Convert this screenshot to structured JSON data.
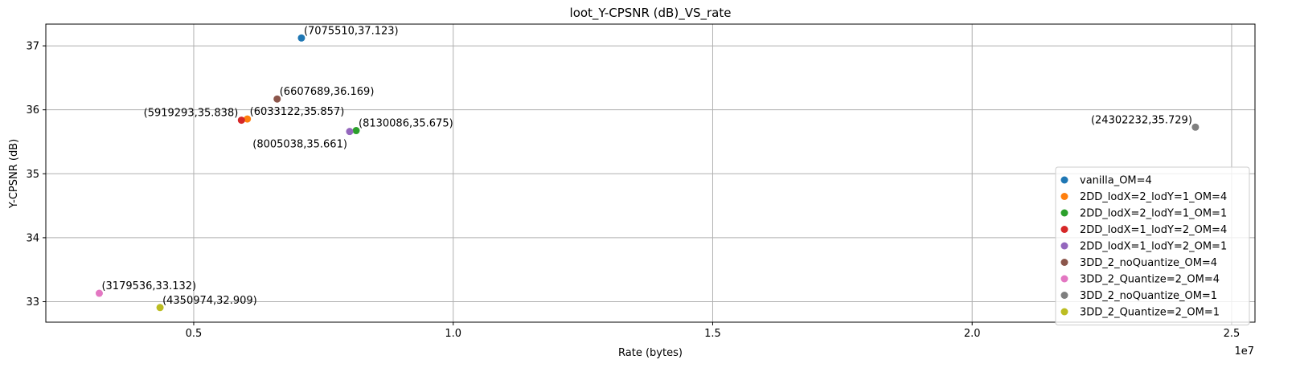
{
  "chart_data": {
    "type": "scatter",
    "title": "loot_Y-CPSNR (dB)_VS_rate",
    "xlabel": "Rate (bytes)",
    "ylabel": "Y-CPSNR (dB)",
    "x_offset_label": "1e7",
    "xlim": [
      2150000,
      25450000
    ],
    "ylim": [
      32.68,
      37.34
    ],
    "x_ticks": [
      {
        "value": 5000000,
        "label": "0.5"
      },
      {
        "value": 10000000,
        "label": "1.0"
      },
      {
        "value": 15000000,
        "label": "1.5"
      },
      {
        "value": 20000000,
        "label": "2.0"
      },
      {
        "value": 25000000,
        "label": "2.5"
      }
    ],
    "y_ticks": [
      {
        "value": 33,
        "label": "33"
      },
      {
        "value": 34,
        "label": "34"
      },
      {
        "value": 35,
        "label": "35"
      },
      {
        "value": 36,
        "label": "36"
      },
      {
        "value": 37,
        "label": "37"
      }
    ],
    "grid": true,
    "legend_position": "lower-right",
    "series": [
      {
        "name": "vanilla_OM=4",
        "color": "#1f77b4",
        "x": 7075510,
        "y": 37.123,
        "label": "(7075510,37.123)",
        "label_align": "right"
      },
      {
        "name": "2DD_lodX=2_lodY=1_OM=4",
        "color": "#ff7f0e",
        "x": 6033122,
        "y": 35.857,
        "label": "(6033122,35.857)",
        "label_align": "right"
      },
      {
        "name": "2DD_lodX=2_lodY=1_OM=1",
        "color": "#2ca02c",
        "x": 8130086,
        "y": 35.675,
        "label": "(8130086,35.675)",
        "label_align": "right"
      },
      {
        "name": "2DD_lodX=1_lodY=2_OM=4",
        "color": "#d62728",
        "x": 5919293,
        "y": 35.838,
        "label": "(5919293,35.838)",
        "label_align": "left"
      },
      {
        "name": "2DD_lodX=1_lodY=2_OM=1",
        "color": "#9467bd",
        "x": 8005038,
        "y": 35.661,
        "label": "(8005038,35.661)",
        "label_align": "below-left"
      },
      {
        "name": "3DD_2_noQuantize_OM=4",
        "color": "#8c564b",
        "x": 6607689,
        "y": 36.169,
        "label": "(6607689,36.169)",
        "label_align": "right"
      },
      {
        "name": "3DD_2_Quantize=2_OM=4",
        "color": "#e377c2",
        "x": 3179536,
        "y": 33.132,
        "label": "(3179536,33.132)",
        "label_align": "right"
      },
      {
        "name": "3DD_2_noQuantize_OM=1",
        "color": "#7f7f7f",
        "x": 24302232,
        "y": 35.729,
        "label": "(24302232,35.729)",
        "label_align": "left"
      },
      {
        "name": "3DD_2_Quantize=2_OM=1",
        "color": "#bcbd22",
        "x": 4350974,
        "y": 32.909,
        "label": "(4350974,32.909)",
        "label_align": "right"
      }
    ]
  }
}
